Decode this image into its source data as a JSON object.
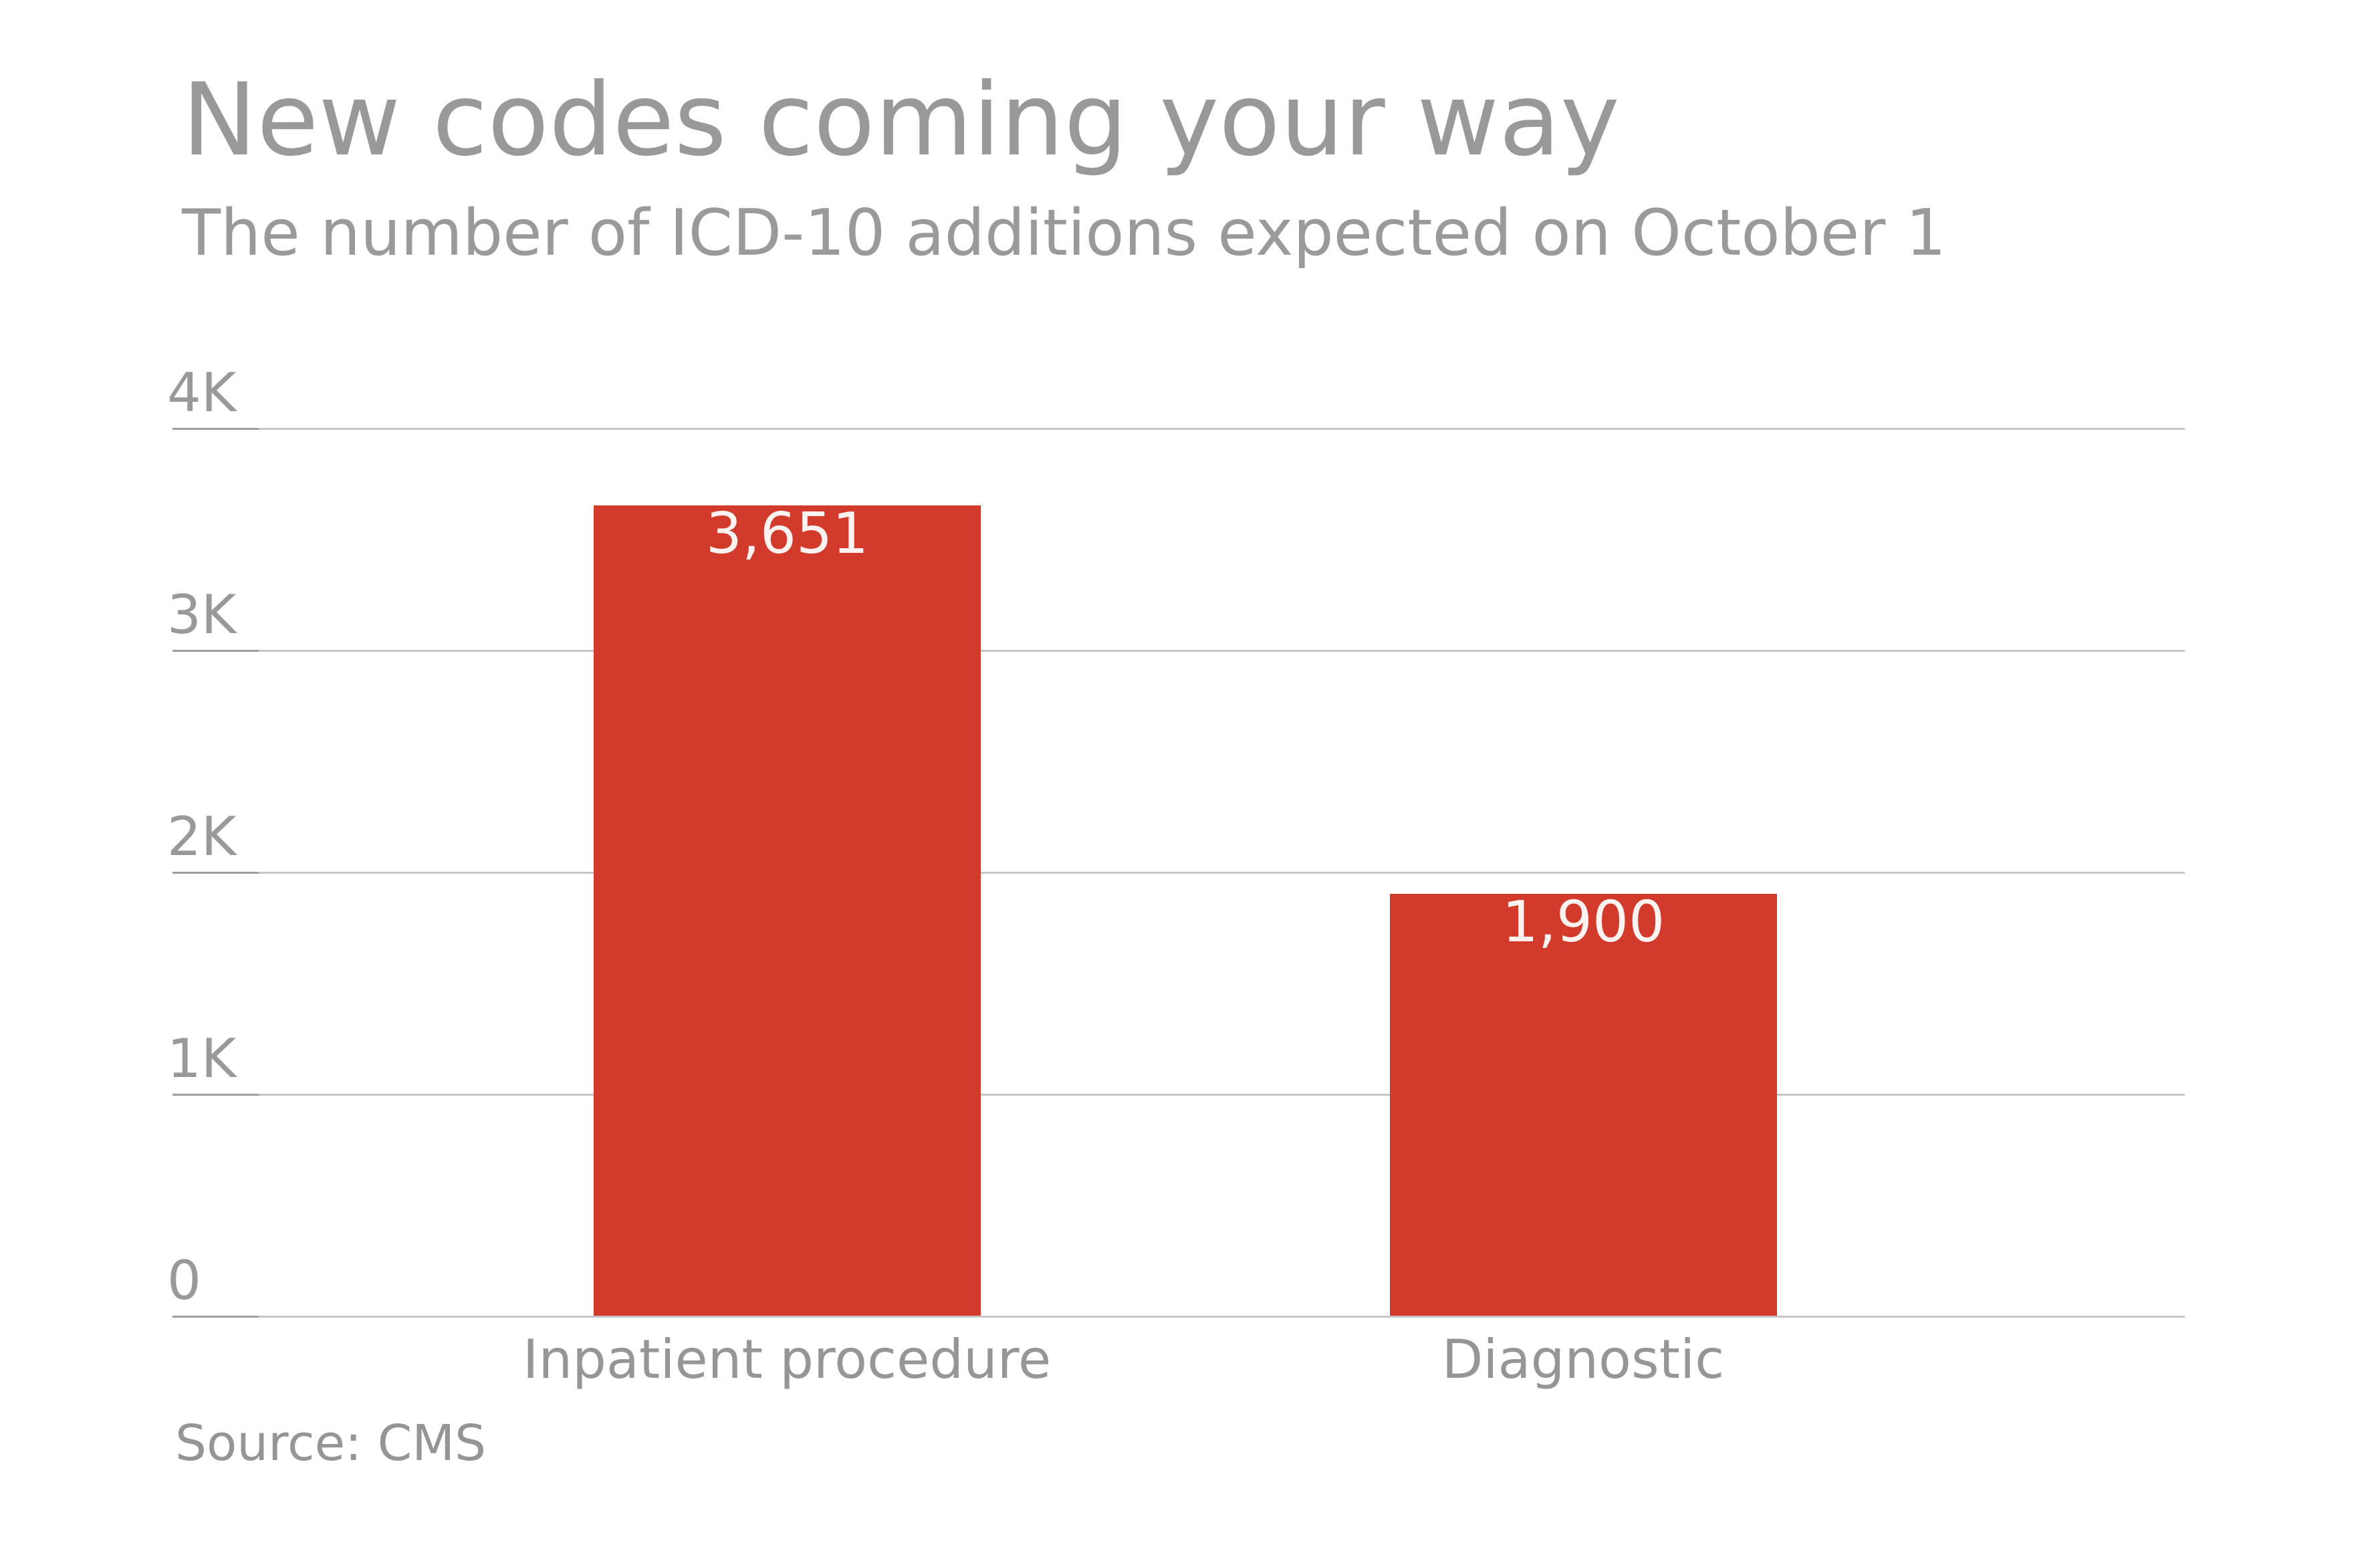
{
  "header": {
    "title": "New codes coming your way",
    "subtitle": "The number of ICD-10 additions expected on October 1"
  },
  "chart_data": {
    "type": "bar",
    "title": "New codes coming your way",
    "subtitle": "The number of ICD-10 additions expected on October 1",
    "categories": [
      "Inpatient procedure",
      "Diagnostic"
    ],
    "values": [
      3651,
      1900
    ],
    "value_labels": [
      "3,651",
      "1,900"
    ],
    "series": [
      {
        "name": "ICD-10 additions",
        "values": [
          3651,
          1900
        ]
      }
    ],
    "xlabel": "",
    "ylabel": "",
    "ylim": [
      0,
      4000
    ],
    "y_ticks": [
      {
        "value": 4000,
        "label": "4K"
      },
      {
        "value": 3000,
        "label": "3K"
      },
      {
        "value": 2000,
        "label": "2K"
      },
      {
        "value": 1000,
        "label": "1K"
      },
      {
        "value": 0,
        "label": "0"
      }
    ],
    "grid": "horizontal-only",
    "legend": "none"
  },
  "footer": {
    "source": "Source: CMS"
  },
  "colors": {
    "background": "#ffffff",
    "bar_red": "#d23b2c",
    "value_label": "#fdf2ef",
    "grid_line": "#c6c6c6",
    "grid_line_cap": "#9e9e9e",
    "title_gray": "#999999",
    "subtitle_gray": "#9a9a9a",
    "tick_gray": "#999999",
    "category_gray": "#969696",
    "source_gray": "#959595"
  }
}
